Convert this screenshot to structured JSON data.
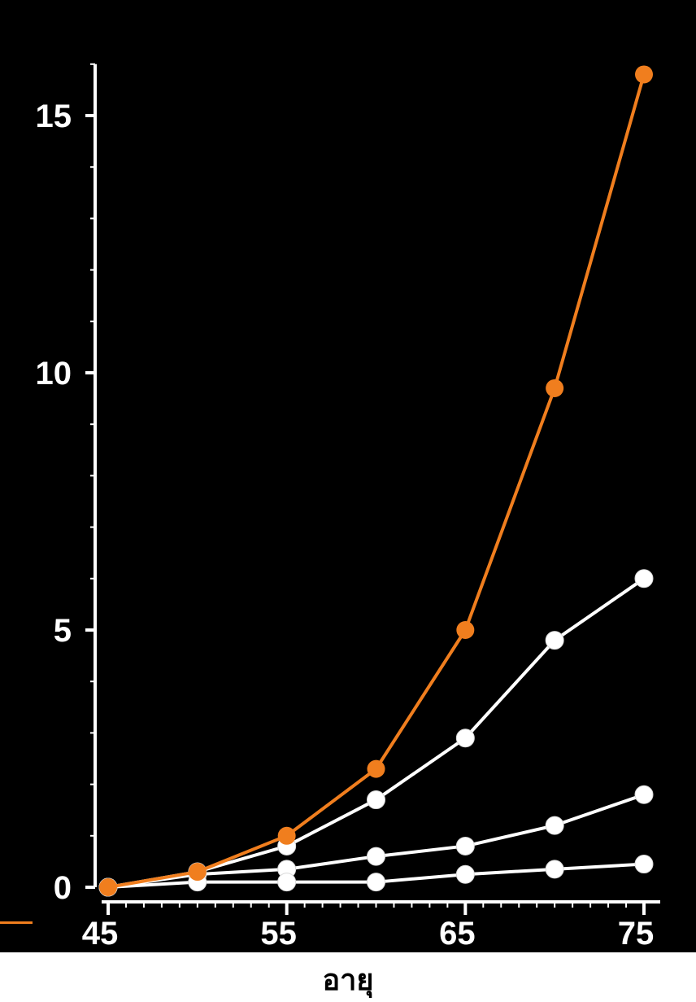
{
  "chart_data": {
    "type": "line",
    "title": "",
    "xlabel": "อายุ",
    "ylabel": "",
    "x": [
      45,
      50,
      55,
      60,
      65,
      70,
      75
    ],
    "xlim": [
      45,
      75
    ],
    "ylim": [
      0,
      16
    ],
    "xticks": [
      45,
      55,
      65,
      75
    ],
    "xtick_labels": [
      "45",
      "55",
      "65",
      "75"
    ],
    "yticks": [
      0,
      5,
      10,
      15
    ],
    "ytick_labels": [
      "0",
      "5",
      "10",
      "15"
    ],
    "grid": false,
    "legend": "none",
    "background": "#000000",
    "series": [
      {
        "color": "#f07e1e",
        "values": [
          0.0,
          0.3,
          1.0,
          2.3,
          5.0,
          9.7,
          15.8
        ]
      },
      {
        "color": "#ffffff",
        "values": [
          0.0,
          0.3,
          0.8,
          1.7,
          2.9,
          4.8,
          6.0
        ]
      },
      {
        "color": "#ffffff",
        "values": [
          0.0,
          0.25,
          0.35,
          0.6,
          0.8,
          1.2,
          1.8
        ]
      },
      {
        "color": "#ffffff",
        "values": [
          0.0,
          0.1,
          0.1,
          0.1,
          0.25,
          0.35,
          0.45
        ]
      }
    ]
  }
}
